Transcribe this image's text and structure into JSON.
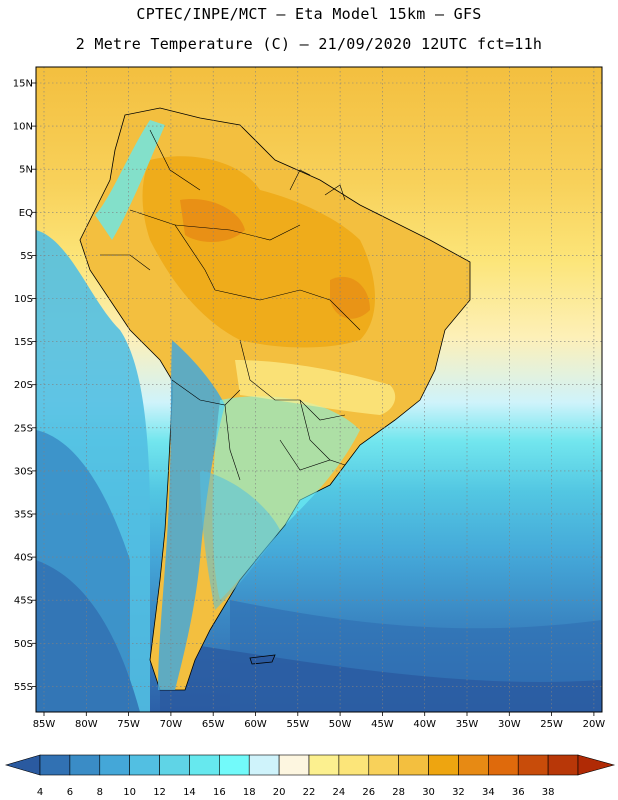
{
  "title": {
    "line1": "CPTEC/INPE/MCT –  Eta Model 15km – GFS",
    "line2": "2 Metre Temperature (C) – 21/09/2020 12UTC fct=11h"
  },
  "map": {
    "lat_labels": [
      "15N",
      "10N",
      "5N",
      "EQ",
      "5S",
      "10S",
      "15S",
      "20S",
      "25S",
      "30S",
      "35S",
      "40S",
      "45S",
      "50S",
      "55S"
    ],
    "lon_labels": [
      "85W",
      "80W",
      "75W",
      "70W",
      "65W",
      "60W",
      "55W",
      "50W",
      "45W",
      "40W",
      "35W",
      "30W",
      "25W",
      "20W"
    ]
  },
  "colorbar": {
    "labels": [
      "4",
      "6",
      "8",
      "10",
      "12",
      "14",
      "16",
      "18",
      "20",
      "22",
      "24",
      "26",
      "28",
      "30",
      "32",
      "34",
      "36",
      "38"
    ],
    "colors": [
      "#2a5aa0",
      "#3171b3",
      "#3a8cc6",
      "#44a7d8",
      "#52bfe2",
      "#5fd4e6",
      "#66e8ee",
      "#72fafa",
      "#cff3fb",
      "#fdf6e0",
      "#fcf08f",
      "#fce579",
      "#f8d15a",
      "#f3bf3f",
      "#eea510",
      "#e78a14",
      "#df6a0c",
      "#c84c0a",
      "#b83708",
      "#b02a05"
    ]
  }
}
